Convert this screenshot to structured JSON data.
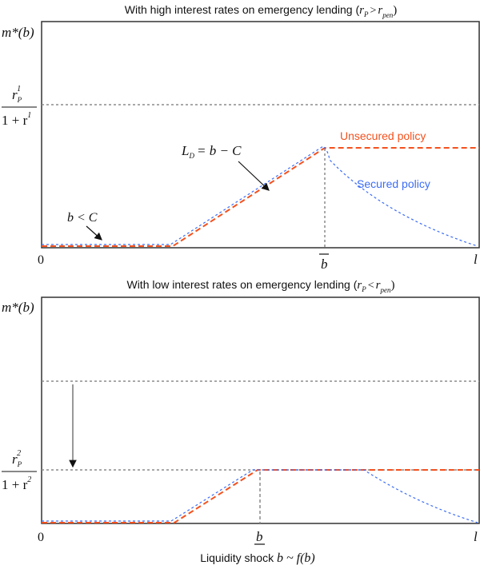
{
  "colors": {
    "unsecured": "#f4511e",
    "secured": "#3b6cf5",
    "reference": "#8c8c8c",
    "axis": "#333333"
  },
  "top_panel": {
    "title_text": "With high interest rates on emergency lending (",
    "title_math": {
      "lhs": "r",
      "lhs_sub": "P",
      "op": ">",
      "rhs": "r",
      "rhs_sub": "pen",
      "close": ")"
    },
    "ylabel": "m*(b)",
    "level_label": {
      "num": "r",
      "sup": "1",
      "sub": "P",
      "den_prefix": "1 + r"
    },
    "x_ticks": {
      "zero": "0",
      "threshold": "b",
      "end": "l"
    },
    "annotations": {
      "ld": "L",
      "ld_sub": "D",
      "ld_rhs": "= b − C",
      "bc": "b < C"
    },
    "legend": {
      "unsecured": "Unsecured policy",
      "secured": "Secured policy"
    }
  },
  "bottom_panel": {
    "title_text": "With low interest rates on emergency lending (",
    "title_math": {
      "lhs": "r",
      "lhs_sub": "P",
      "op": "<",
      "rhs": "r",
      "rhs_sub": "pen",
      "close": ")"
    },
    "ylabel": "m*(b)",
    "level_label": {
      "num": "r",
      "sup": "2",
      "sub": "P",
      "den_prefix": "1 + r"
    },
    "x_ticks": {
      "zero": "0",
      "threshold": "b",
      "end": "l"
    },
    "xlabel_text": "Liquidity shock ",
    "xlabel_math": "b ~ f(b)"
  }
}
